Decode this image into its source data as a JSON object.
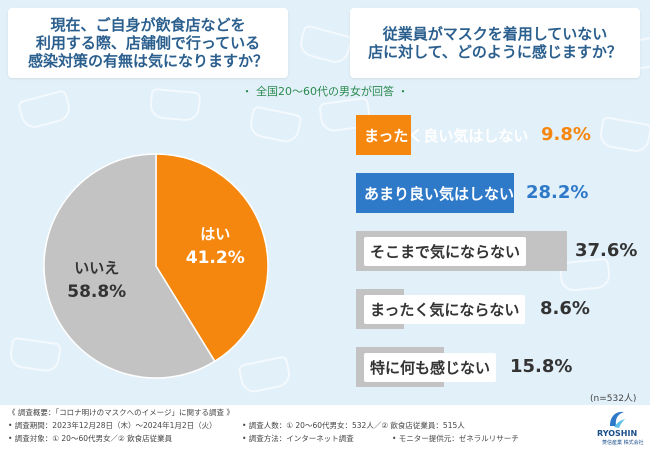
{
  "questions": {
    "left": "現在、ご自身が飲食店などを\n利用する際、店舗側で行っている\n感染対策の有無は気になりますか？",
    "right": "従業員がマスクを着用していない\n店に対して、どのように感じますか？"
  },
  "respondent_note": "・ 全国20～60代の男女が回答 ・",
  "sample_size": "(n=532人)",
  "colors": {
    "accent_orange": "#f5870f",
    "accent_blue": "#2f79c9",
    "neutral_gray": "#c3c3c3",
    "title_blue": "#2b5f8e"
  },
  "chart_data": [
    {
      "type": "pie",
      "title": "現在、ご自身が飲食店などを利用する際、店舗側で行っている感染対策の有無は気になりますか？",
      "slices": [
        {
          "label": "はい",
          "value": 41.2,
          "display": "41.2%",
          "color": "#f5870f"
        },
        {
          "label": "いいえ",
          "value": 58.8,
          "display": "58.8%",
          "color": "#c3c3c3"
        }
      ]
    },
    {
      "type": "bar",
      "orientation": "horizontal",
      "title": "従業員がマスクを着用していない店に対して、どのように感じますか？",
      "categories": [
        "まったく良い気はしない",
        "あまり良い気はしない",
        "そこまで気にならない",
        "まったく気にならない",
        "特に何も感じない"
      ],
      "values": [
        9.8,
        28.2,
        37.6,
        8.6,
        15.8
      ],
      "display": [
        "9.8%",
        "28.2%",
        "37.6%",
        "8.6%",
        "15.8%"
      ],
      "colors": [
        "#f5870f",
        "#2f79c9",
        "#c3c3c3",
        "#c3c3c3",
        "#c3c3c3"
      ],
      "unit": "%"
    }
  ],
  "footer": {
    "overview": "《 調査概要：「コロナ明けのマスクへのイメージ」に関する調査 》",
    "period": "• 調査期間：2023年12月28日（木）～2024年1月2日（火）",
    "people": "• 調査人数：① 20～60代男女：532人／② 飲食店従業員：515人",
    "target": "• 調査対象：① 20～60代男女／② 飲食店従業員",
    "method": "• 調査方法：インターネット調査",
    "monitor": "• モニター提供元：ゼネラルリサーチ"
  },
  "logo": {
    "name": "RYOSHIN",
    "sub": "菱信産業 株式会社"
  }
}
